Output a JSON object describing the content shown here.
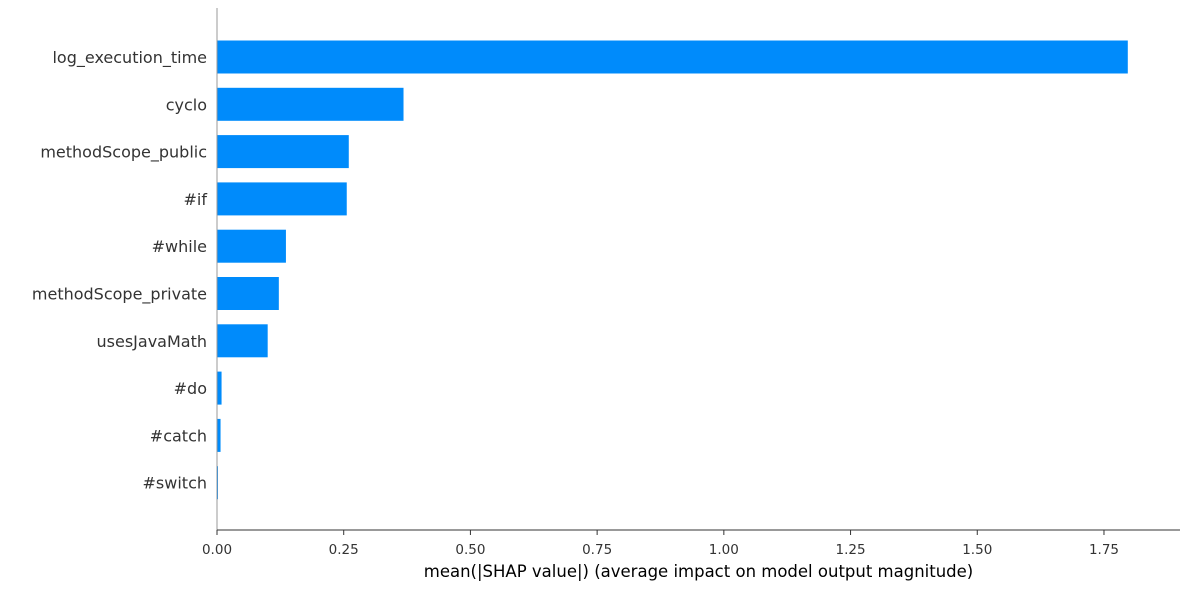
{
  "chart_data": {
    "type": "bar",
    "orientation": "horizontal",
    "categories": [
      "log_execution_time",
      "cyclo",
      "methodScope_public",
      "#if",
      "#while",
      "methodScope_private",
      "usesJavaMath",
      "#do",
      "#catch",
      "#switch"
    ],
    "values": [
      1.797,
      0.368,
      0.26,
      0.256,
      0.136,
      0.122,
      0.1,
      0.009,
      0.007,
      0.001
    ],
    "title": "",
    "xlabel": "mean(|SHAP value|) (average impact on model output magnitude)",
    "ylabel": "",
    "xlim": [
      0,
      1.9
    ],
    "xticks": [
      0.0,
      0.25,
      0.5,
      0.75,
      1.0,
      1.25,
      1.5,
      1.75
    ],
    "xtick_labels": [
      "0.00",
      "0.25",
      "0.50",
      "0.75",
      "1.00",
      "1.25",
      "1.50",
      "1.75"
    ],
    "grid": false,
    "legend": "none",
    "bar_color": "#008bfb",
    "axis_color": "#333333"
  }
}
